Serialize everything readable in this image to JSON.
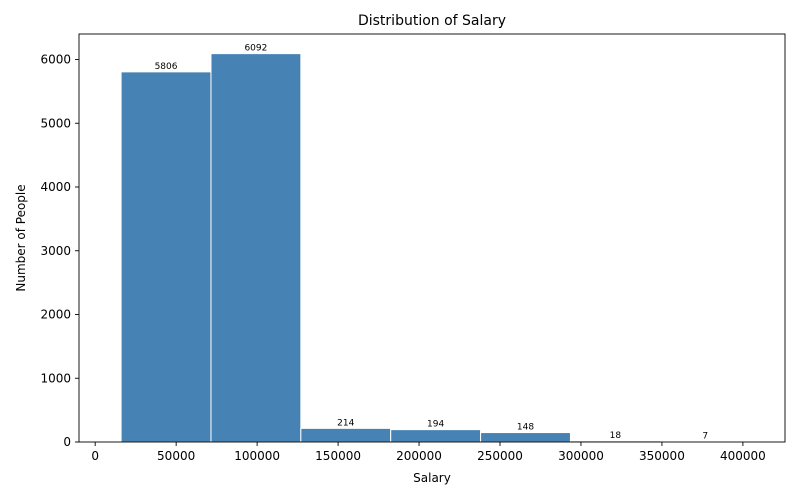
{
  "chart_data": {
    "type": "bar",
    "title": "Distribution of Salary",
    "xlabel": "Salary",
    "ylabel": "Number of People",
    "bins": [
      {
        "start": 16000,
        "end": 71500,
        "value": 5806
      },
      {
        "start": 71500,
        "end": 127000,
        "value": 6092
      },
      {
        "start": 127000,
        "end": 182500,
        "value": 214
      },
      {
        "start": 182500,
        "end": 238000,
        "value": 194
      },
      {
        "start": 238000,
        "end": 293500,
        "value": 148
      },
      {
        "start": 293500,
        "end": 349000,
        "value": 18
      },
      {
        "start": 349000,
        "end": 404500,
        "value": 7
      }
    ],
    "xlim": [
      -10000,
      426000
    ],
    "ylim": [
      0,
      6400
    ],
    "xticks": [
      0,
      50000,
      100000,
      150000,
      200000,
      250000,
      300000,
      350000,
      400000
    ],
    "xtick_labels": [
      "0",
      "50000",
      "100000",
      "150000",
      "200000",
      "250000",
      "300000",
      "350000",
      "400000"
    ],
    "yticks": [
      0,
      1000,
      2000,
      3000,
      4000,
      5000,
      6000
    ],
    "ytick_labels": [
      "0",
      "1000",
      "2000",
      "3000",
      "4000",
      "5000",
      "6000"
    ],
    "grid": false,
    "bar_color": "#4682b4",
    "edge_color": "#ffffff"
  }
}
